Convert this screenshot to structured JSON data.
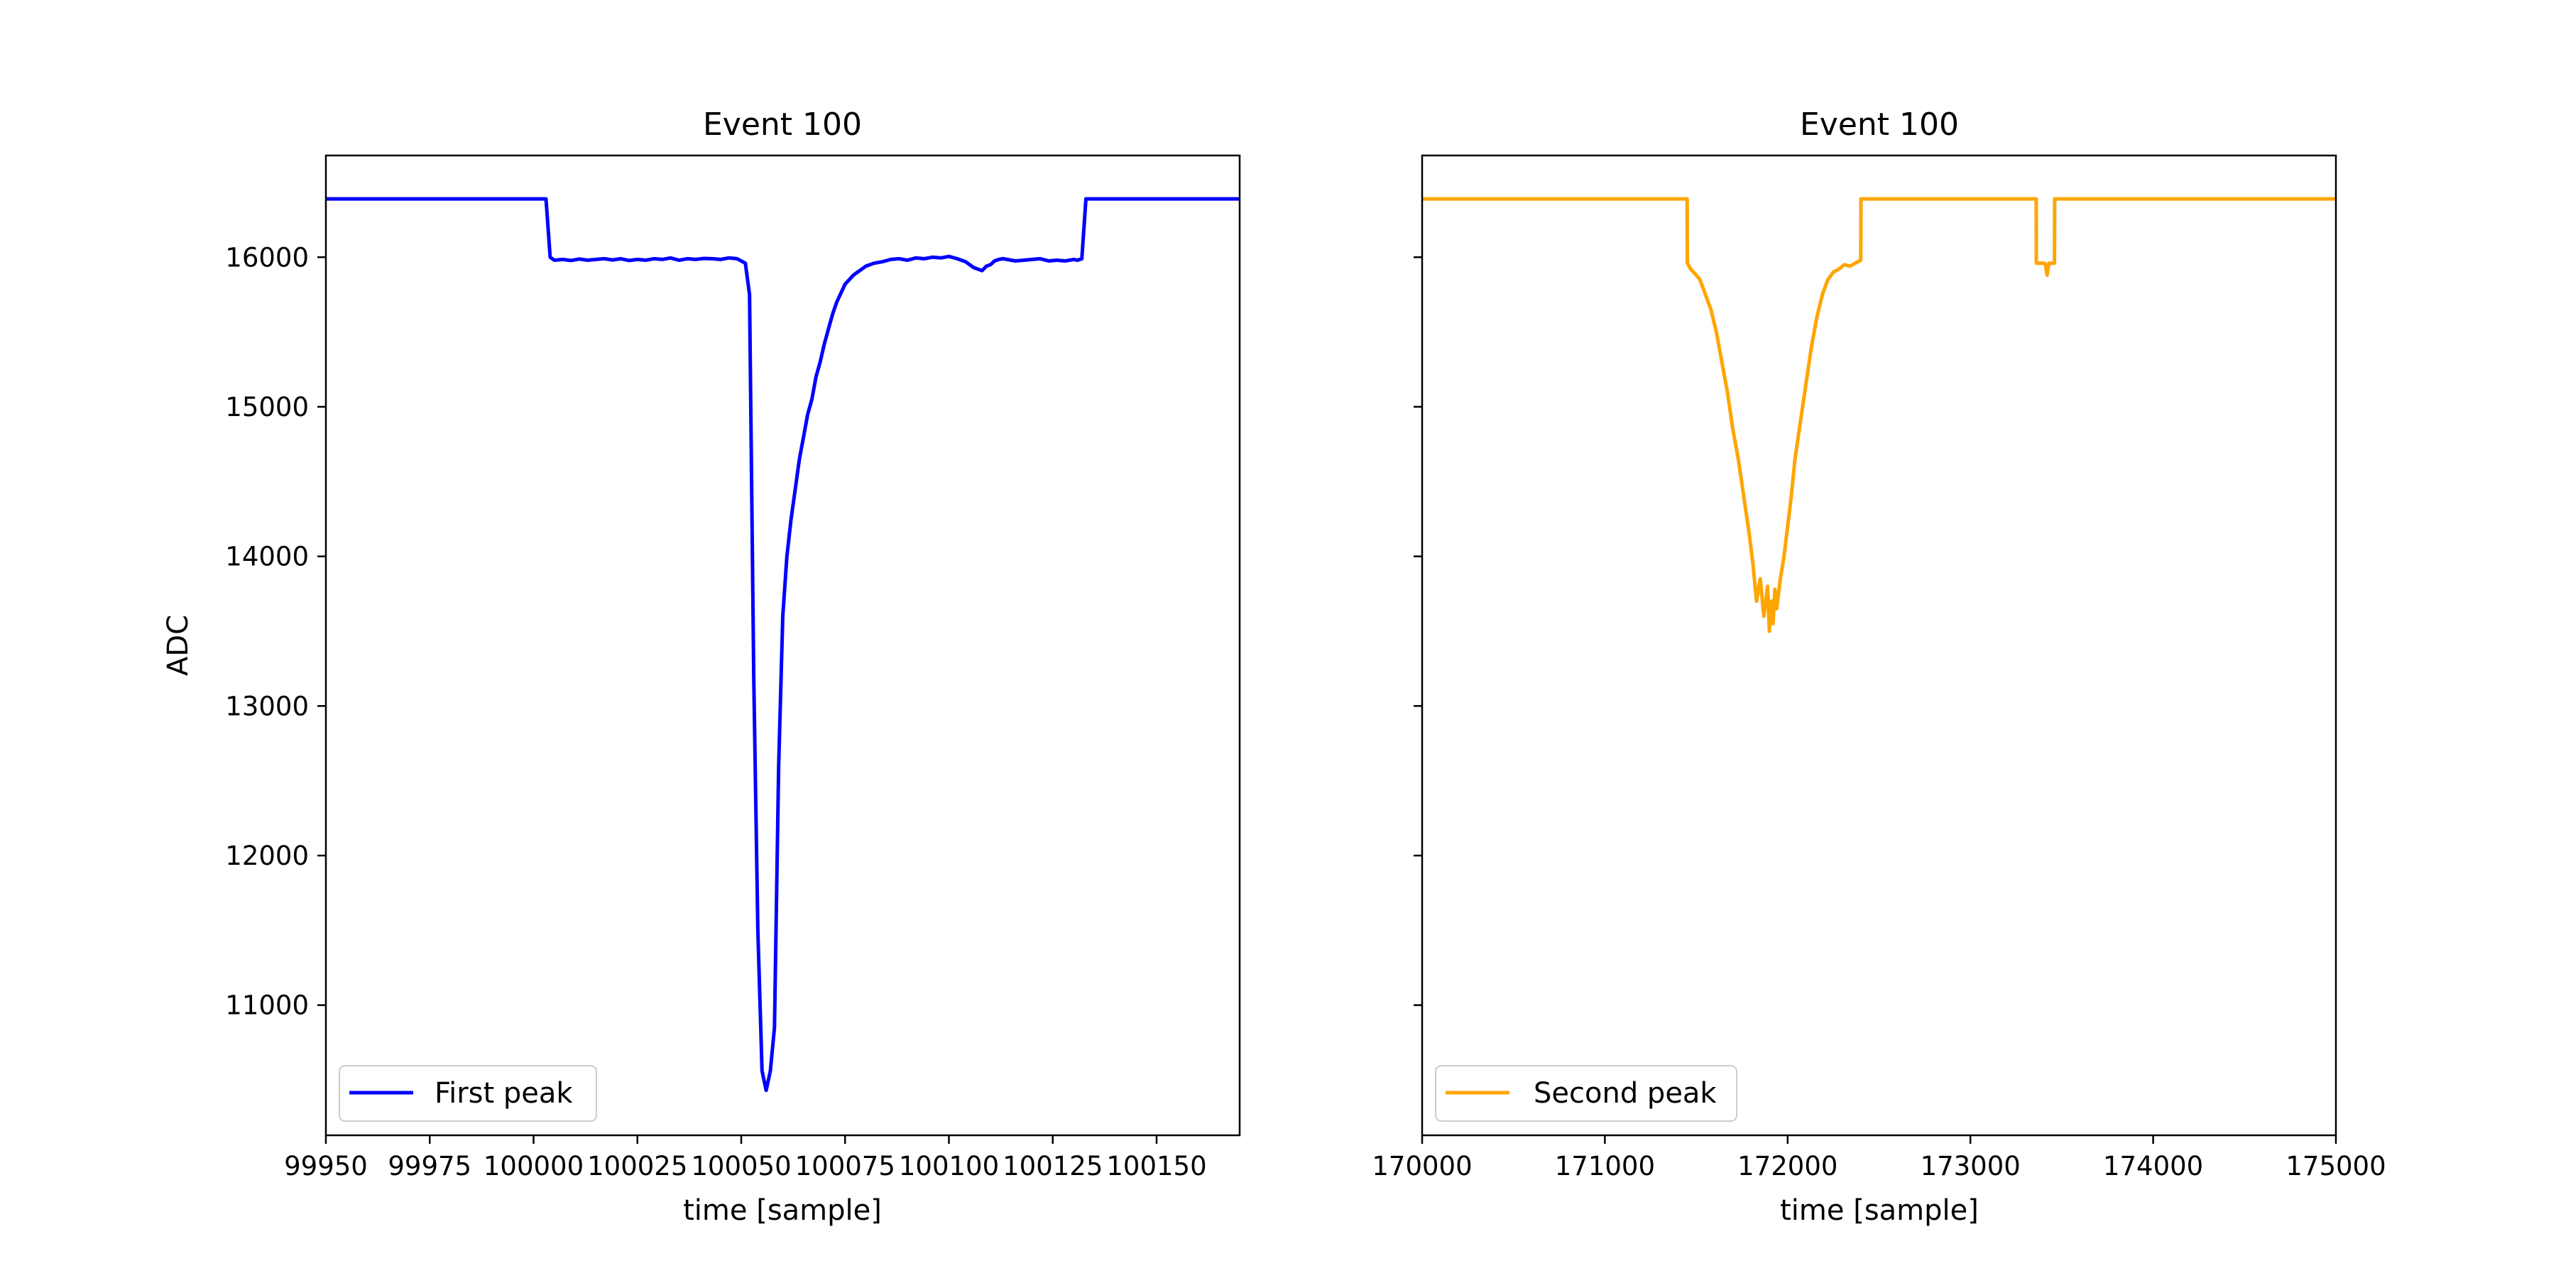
{
  "chart_data": [
    {
      "type": "line",
      "title": "Event 100",
      "xlabel": "time [sample]",
      "ylabel": "ADC",
      "xlim": [
        99950,
        100170
      ],
      "ylim": [
        10130,
        16680
      ],
      "xticks": [
        99950,
        99975,
        100000,
        100025,
        100050,
        100075,
        100100,
        100125,
        100150
      ],
      "xtick_labels": [
        "99950",
        "99975",
        "100000",
        "100025",
        "100050",
        "100075",
        "100100",
        "100125",
        "100150"
      ],
      "yticks": [
        11000,
        12000,
        13000,
        14000,
        15000,
        16000
      ],
      "ytick_labels": [
        "11000",
        "12000",
        "13000",
        "14000",
        "15000",
        "16000"
      ],
      "grid": false,
      "legend": "lower-left",
      "series": [
        {
          "name": "First peak",
          "color": "#0000ff",
          "x": [
            99950,
            100003,
            100004,
            100005,
            100007,
            100009,
            100011,
            100013,
            100015,
            100017,
            100019,
            100021,
            100023,
            100025,
            100027,
            100029,
            100031,
            100033,
            100035,
            100037,
            100039,
            100041,
            100043,
            100045,
            100047,
            100049,
            100051,
            100052,
            100053,
            100054,
            100055,
            100056,
            100057,
            100058,
            100059,
            100060,
            100061,
            100062,
            100063,
            100064,
            100065,
            100066,
            100067,
            100068,
            100069,
            100070,
            100071,
            100072,
            100073,
            100074,
            100075,
            100076,
            100077,
            100078,
            100079,
            100080,
            100082,
            100084,
            100086,
            100088,
            100090,
            100092,
            100094,
            100096,
            100098,
            100100,
            100102,
            100104,
            100106,
            100108,
            100109,
            100110,
            100111,
            100112,
            100113,
            100114,
            100116,
            100118,
            100120,
            100122,
            100124,
            100126,
            100128,
            100130,
            100131,
            100132,
            100133,
            100134,
            100170
          ],
          "y": [
            16390,
            16390,
            16000,
            15980,
            15985,
            15978,
            15988,
            15980,
            15985,
            15990,
            15982,
            15990,
            15978,
            15985,
            15980,
            15990,
            15985,
            15995,
            15980,
            15990,
            15985,
            15992,
            15990,
            15985,
            15995,
            15990,
            15960,
            15750,
            13200,
            11500,
            10560,
            10430,
            10560,
            10850,
            12600,
            13600,
            14000,
            14250,
            14450,
            14650,
            14800,
            14950,
            15050,
            15200,
            15300,
            15420,
            15520,
            15620,
            15700,
            15760,
            15820,
            15850,
            15880,
            15900,
            15920,
            15940,
            15960,
            15970,
            15985,
            15990,
            15980,
            15995,
            15990,
            16000,
            15995,
            16005,
            15990,
            15970,
            15930,
            15910,
            15940,
            15950,
            15975,
            15985,
            15990,
            15985,
            15975,
            15980,
            15985,
            15990,
            15975,
            15980,
            15975,
            15985,
            15980,
            15990,
            16390,
            16390,
            16390
          ]
        }
      ]
    },
    {
      "type": "line",
      "title": "Event 100",
      "xlabel": "time [sample]",
      "ylabel": "",
      "xlim": [
        170000,
        175000
      ],
      "ylim": [
        10130,
        16680
      ],
      "xticks": [
        170000,
        171000,
        172000,
        173000,
        174000,
        175000
      ],
      "xtick_labels": [
        "170000",
        "171000",
        "172000",
        "173000",
        "174000",
        "175000"
      ],
      "yticks": [
        11000,
        12000,
        13000,
        14000,
        15000,
        16000
      ],
      "ytick_labels": [],
      "grid": false,
      "legend": "lower-left",
      "series": [
        {
          "name": "Second peak",
          "color": "#ffa500",
          "x": [
            170000,
            171450,
            171451,
            171470,
            171500,
            171520,
            171550,
            171580,
            171610,
            171640,
            171670,
            171700,
            171730,
            171760,
            171790,
            171810,
            171830,
            171850,
            171870,
            171890,
            171900,
            171910,
            171920,
            171930,
            171940,
            171960,
            171980,
            172000,
            172020,
            172040,
            172070,
            172100,
            172130,
            172160,
            172190,
            172220,
            172250,
            172280,
            172310,
            172340,
            172370,
            172400,
            172401,
            173360,
            173361,
            173400,
            173410,
            173420,
            173430,
            173450,
            173460,
            173461,
            175000
          ],
          "y": [
            16390,
            16390,
            15960,
            15920,
            15880,
            15850,
            15750,
            15650,
            15500,
            15300,
            15100,
            14850,
            14650,
            14400,
            14150,
            13950,
            13700,
            13850,
            13600,
            13800,
            13500,
            13700,
            13550,
            13780,
            13650,
            13850,
            14000,
            14200,
            14400,
            14650,
            14900,
            15150,
            15400,
            15600,
            15750,
            15850,
            15900,
            15920,
            15950,
            15940,
            15960,
            15980,
            16390,
            16390,
            15960,
            15960,
            15955,
            15880,
            15960,
            15960,
            15960,
            16390,
            16390
          ]
        }
      ]
    }
  ]
}
